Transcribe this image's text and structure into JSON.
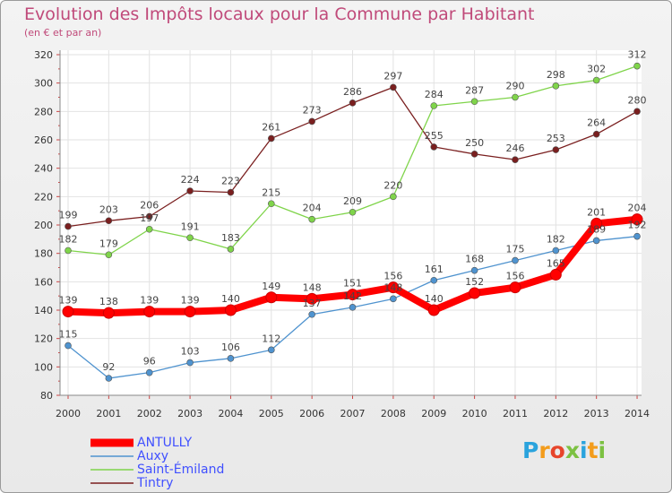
{
  "header": {
    "title": "Evolution des Impôts locaux pour la Commune par Habitant",
    "subtitle": "(en € et par an)"
  },
  "logo": {
    "chars": [
      "P",
      "r",
      "o",
      "x",
      "i",
      "t",
      "i"
    ],
    "colors": [
      "#2aa3dd",
      "#f39c1b",
      "#e7452b",
      "#7cc142",
      "#2aa3dd",
      "#f39c1b",
      "#7cc142"
    ]
  },
  "chart_data": {
    "type": "line",
    "title": "Evolution des Impôts locaux pour la Commune par Habitant",
    "subtitle": "(en € et par an)",
    "xlabel": "",
    "ylabel": "",
    "x": [
      "2000",
      "2001",
      "2002",
      "2003",
      "2004",
      "2005",
      "2006",
      "2007",
      "2008",
      "2009",
      "2010",
      "2011",
      "2012",
      "2013",
      "2014"
    ],
    "ylim": [
      80,
      320
    ],
    "yticks": [
      80,
      100,
      120,
      140,
      160,
      180,
      200,
      220,
      240,
      260,
      280,
      300,
      320
    ],
    "grid": true,
    "legend_position": "bottom-left",
    "series": [
      {
        "name": "ANTULLY",
        "color": "#ff0000",
        "values": [
          139,
          138,
          139,
          139,
          140,
          149,
          148,
          151,
          156,
          140,
          152,
          156,
          165,
          201,
          204
        ]
      },
      {
        "name": "Auxy",
        "color": "#4f93cf",
        "values": [
          115,
          92,
          96,
          103,
          106,
          112,
          137,
          142,
          148,
          161,
          168,
          175,
          182,
          189,
          192
        ]
      },
      {
        "name": "Saint-Émiland",
        "color": "#7fd44a",
        "values": [
          182,
          179,
          197,
          191,
          183,
          215,
          204,
          209,
          220,
          284,
          287,
          290,
          298,
          302,
          312
        ]
      },
      {
        "name": "Tintry",
        "color": "#7a1f1f",
        "values": [
          199,
          203,
          206,
          224,
          223,
          261,
          273,
          286,
          297,
          255,
          250,
          246,
          253,
          264,
          280
        ]
      }
    ]
  }
}
